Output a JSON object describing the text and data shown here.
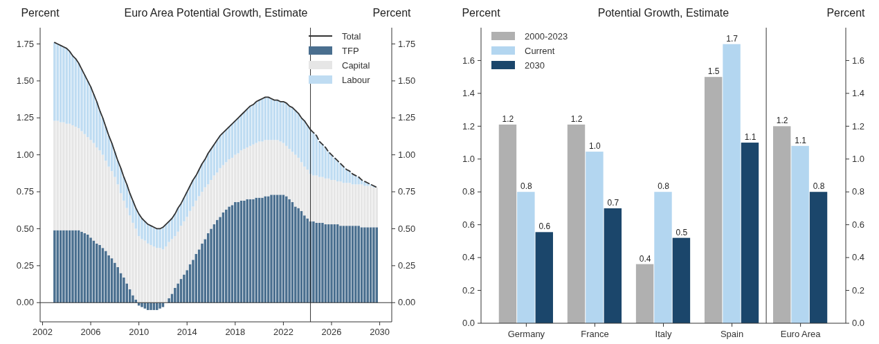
{
  "chart_data": [
    {
      "type": "bar",
      "title": "Euro Area Potential Growth, Estimate",
      "ylabel": "Percent",
      "y2label": "Percent",
      "stacked": true,
      "legend": "top right",
      "x": [
        2003,
        2003.25,
        2003.5,
        2003.75,
        2004,
        2004.25,
        2004.5,
        2004.75,
        2005,
        2005.25,
        2005.5,
        2005.75,
        2006,
        2006.25,
        2006.5,
        2006.75,
        2007,
        2007.25,
        2007.5,
        2007.75,
        2008,
        2008.25,
        2008.5,
        2008.75,
        2009,
        2009.25,
        2009.5,
        2009.75,
        2010,
        2010.25,
        2010.5,
        2010.75,
        2011,
        2011.25,
        2011.5,
        2011.75,
        2012,
        2012.25,
        2012.5,
        2012.75,
        2013,
        2013.25,
        2013.5,
        2013.75,
        2014,
        2014.25,
        2014.5,
        2014.75,
        2015,
        2015.25,
        2015.5,
        2015.75,
        2016,
        2016.25,
        2016.5,
        2016.75,
        2017,
        2017.25,
        2017.5,
        2017.75,
        2018,
        2018.25,
        2018.5,
        2018.75,
        2019,
        2019.25,
        2019.5,
        2019.75,
        2020,
        2020.25,
        2020.5,
        2020.75,
        2021,
        2021.25,
        2021.5,
        2021.75,
        2022,
        2022.25,
        2022.5,
        2022.75,
        2023,
        2023.25,
        2023.5,
        2023.75,
        2024,
        2024.25,
        2024.5,
        2024.75,
        2025,
        2025.25,
        2025.5,
        2025.75,
        2026,
        2026.25,
        2026.5,
        2026.75,
        2027,
        2027.25,
        2027.5,
        2027.75,
        2028,
        2028.25,
        2028.5,
        2028.75,
        2029,
        2029.25,
        2029.5,
        2029.75
      ],
      "series": [
        {
          "name": "TFP",
          "color": "#4a6f8f",
          "values": [
            0.49,
            0.49,
            0.49,
            0.49,
            0.49,
            0.49,
            0.49,
            0.49,
            0.49,
            0.48,
            0.47,
            0.46,
            0.44,
            0.42,
            0.4,
            0.39,
            0.37,
            0.35,
            0.32,
            0.3,
            0.27,
            0.24,
            0.2,
            0.17,
            0.13,
            0.09,
            0.05,
            0.02,
            -0.02,
            -0.03,
            -0.04,
            -0.05,
            -0.05,
            -0.05,
            -0.05,
            -0.04,
            -0.03,
            0.0,
            0.03,
            0.06,
            0.1,
            0.13,
            0.16,
            0.19,
            0.22,
            0.26,
            0.29,
            0.33,
            0.36,
            0.4,
            0.43,
            0.47,
            0.5,
            0.53,
            0.56,
            0.58,
            0.61,
            0.63,
            0.65,
            0.66,
            0.68,
            0.68,
            0.69,
            0.69,
            0.7,
            0.7,
            0.7,
            0.71,
            0.71,
            0.71,
            0.72,
            0.72,
            0.73,
            0.73,
            0.73,
            0.73,
            0.73,
            0.72,
            0.7,
            0.68,
            0.65,
            0.64,
            0.62,
            0.59,
            0.57,
            0.55,
            0.55,
            0.54,
            0.54,
            0.54,
            0.53,
            0.53,
            0.53,
            0.53,
            0.53,
            0.52,
            0.52,
            0.52,
            0.52,
            0.52,
            0.52,
            0.52,
            0.51,
            0.51,
            0.51,
            0.51,
            0.51,
            0.51
          ]
        },
        {
          "name": "Capital",
          "color": "#e6e6e6",
          "values": [
            0.74,
            0.74,
            0.73,
            0.73,
            0.72,
            0.72,
            0.71,
            0.7,
            0.69,
            0.68,
            0.67,
            0.66,
            0.66,
            0.66,
            0.65,
            0.64,
            0.63,
            0.61,
            0.6,
            0.59,
            0.58,
            0.56,
            0.54,
            0.52,
            0.51,
            0.5,
            0.49,
            0.48,
            0.45,
            0.43,
            0.42,
            0.4,
            0.39,
            0.38,
            0.37,
            0.37,
            0.36,
            0.38,
            0.38,
            0.37,
            0.35,
            0.35,
            0.36,
            0.36,
            0.36,
            0.36,
            0.36,
            0.36,
            0.36,
            0.35,
            0.35,
            0.33,
            0.33,
            0.33,
            0.32,
            0.33,
            0.32,
            0.32,
            0.32,
            0.32,
            0.32,
            0.33,
            0.34,
            0.35,
            0.35,
            0.36,
            0.37,
            0.37,
            0.38,
            0.38,
            0.38,
            0.38,
            0.37,
            0.37,
            0.37,
            0.36,
            0.35,
            0.34,
            0.34,
            0.34,
            0.35,
            0.34,
            0.33,
            0.33,
            0.33,
            0.32,
            0.31,
            0.32,
            0.31,
            0.31,
            0.31,
            0.31,
            0.3,
            0.3,
            0.29,
            0.3,
            0.29,
            0.29,
            0.29,
            0.28,
            0.28,
            0.28,
            0.29,
            0.28,
            0.28,
            0.28,
            0.27,
            0.27
          ]
        },
        {
          "name": "Labour",
          "color": "#bfdcf2",
          "values": [
            0.53,
            0.52,
            0.52,
            0.51,
            0.51,
            0.49,
            0.47,
            0.46,
            0.44,
            0.42,
            0.4,
            0.38,
            0.36,
            0.33,
            0.31,
            0.27,
            0.25,
            0.23,
            0.21,
            0.19,
            0.17,
            0.16,
            0.17,
            0.16,
            0.16,
            0.15,
            0.15,
            0.14,
            0.15,
            0.14,
            0.13,
            0.13,
            0.13,
            0.13,
            0.13,
            0.13,
            0.15,
            0.15,
            0.14,
            0.14,
            0.15,
            0.16,
            0.15,
            0.16,
            0.17,
            0.17,
            0.18,
            0.17,
            0.18,
            0.19,
            0.19,
            0.21,
            0.21,
            0.21,
            0.22,
            0.22,
            0.22,
            0.22,
            0.22,
            0.23,
            0.23,
            0.24,
            0.24,
            0.25,
            0.26,
            0.27,
            0.27,
            0.28,
            0.28,
            0.29,
            0.29,
            0.29,
            0.28,
            0.27,
            0.27,
            0.27,
            0.28,
            0.29,
            0.29,
            0.3,
            0.3,
            0.3,
            0.3,
            0.31,
            0.3,
            0.3,
            0.29,
            0.27,
            0.24,
            0.22,
            0.21,
            0.18,
            0.17,
            0.15,
            0.14,
            0.12,
            0.11,
            0.09,
            0.08,
            0.07,
            0.06,
            0.05,
            0.03,
            0.03,
            0.02,
            0.01,
            0.01,
            0.0
          ]
        },
        {
          "name": "Total",
          "type": "line",
          "color": "#333333",
          "line_style": "solid",
          "x": [
            2003,
            2003.25,
            2003.5,
            2003.75,
            2004,
            2004.25,
            2004.5,
            2004.75,
            2005,
            2005.25,
            2005.5,
            2005.75,
            2006,
            2006.25,
            2006.5,
            2006.75,
            2007,
            2007.25,
            2007.5,
            2007.75,
            2008,
            2008.25,
            2008.5,
            2008.75,
            2009,
            2009.25,
            2009.5,
            2009.75,
            2010,
            2010.25,
            2010.5,
            2010.75,
            2011,
            2011.25,
            2011.5,
            2011.75,
            2012,
            2012.25,
            2012.5,
            2012.75,
            2013,
            2013.25,
            2013.5,
            2013.75,
            2014,
            2014.25,
            2014.5,
            2014.75,
            2015,
            2015.25,
            2015.5,
            2015.75,
            2016,
            2016.25,
            2016.5,
            2016.75,
            2017,
            2017.25,
            2017.5,
            2017.75,
            2018,
            2018.25,
            2018.5,
            2018.75,
            2019,
            2019.25,
            2019.5,
            2019.75,
            2020,
            2020.25,
            2020.5,
            2020.75,
            2021,
            2021.25,
            2021.5,
            2021.75,
            2022,
            2022.25,
            2022.5,
            2022.75,
            2023,
            2023.25,
            2023.5,
            2023.75,
            2024,
            2024.25
          ],
          "values": [
            1.76,
            1.75,
            1.74,
            1.73,
            1.72,
            1.7,
            1.67,
            1.65,
            1.62,
            1.58,
            1.54,
            1.5,
            1.46,
            1.41,
            1.36,
            1.3,
            1.25,
            1.19,
            1.13,
            1.08,
            1.02,
            0.96,
            0.91,
            0.85,
            0.8,
            0.74,
            0.69,
            0.64,
            0.6,
            0.57,
            0.55,
            0.53,
            0.52,
            0.51,
            0.5,
            0.5,
            0.51,
            0.53,
            0.55,
            0.57,
            0.6,
            0.64,
            0.67,
            0.71,
            0.75,
            0.79,
            0.83,
            0.86,
            0.9,
            0.94,
            0.97,
            1.01,
            1.04,
            1.07,
            1.1,
            1.13,
            1.15,
            1.17,
            1.19,
            1.21,
            1.23,
            1.25,
            1.27,
            1.29,
            1.31,
            1.33,
            1.34,
            1.36,
            1.37,
            1.38,
            1.39,
            1.39,
            1.38,
            1.37,
            1.37,
            1.36,
            1.36,
            1.35,
            1.33,
            1.32,
            1.3,
            1.28,
            1.25,
            1.23,
            1.2,
            1.17
          ]
        },
        {
          "type": "line",
          "color": "#333333",
          "line_style": "dashed",
          "x": [
            2024.25,
            2024.5,
            2024.75,
            2025,
            2025.25,
            2025.5,
            2025.75,
            2026,
            2026.25,
            2026.5,
            2026.75,
            2027,
            2027.25,
            2027.5,
            2027.75,
            2028,
            2028.25,
            2028.5,
            2028.75,
            2029,
            2029.25,
            2029.5,
            2029.75
          ],
          "values": [
            1.17,
            1.15,
            1.13,
            1.09,
            1.07,
            1.05,
            1.02,
            1.0,
            0.98,
            0.96,
            0.94,
            0.92,
            0.9,
            0.89,
            0.87,
            0.86,
            0.85,
            0.83,
            0.82,
            0.81,
            0.8,
            0.79,
            0.78
          ]
        }
      ],
      "xlim": [
        2001.8,
        2031
      ],
      "xticks": [
        2002,
        2006,
        2010,
        2014,
        2018,
        2022,
        2026,
        2030
      ],
      "ylim": [
        -0.13,
        1.86
      ],
      "yticks": [
        {
          "value": 0,
          "label": "0.00"
        },
        0.25,
        {
          "value": 0.5,
          "label": "0.50"
        },
        0.75,
        {
          "value": 1,
          "label": "1.00"
        },
        1.25,
        {
          "value": 1.5,
          "label": "1.50"
        },
        1.75
      ],
      "y2lim": [
        -0.13,
        1.86
      ],
      "y2ticks": [
        {
          "value": 0,
          "label": "0.00"
        },
        0.25,
        {
          "value": 0.5,
          "label": "0.50"
        },
        0.75,
        {
          "value": 1,
          "label": "1.00"
        },
        1.25,
        {
          "value": 1.5,
          "label": "1.50"
        },
        1.75
      ],
      "ref_lines": [
        {
          "axis": "x",
          "value": 2024.25,
          "color": "#333333"
        },
        {
          "axis": "y",
          "value": 0,
          "color": "#333333"
        }
      ]
    },
    {
      "type": "bar",
      "title": "Potential Growth, Estimate",
      "ylabel": "Percent",
      "y2label": "Percent",
      "legend": "top left",
      "categories": [
        "Germany",
        "France",
        "Italy",
        "Spain",
        "Euro Area"
      ],
      "series": [
        {
          "name": "2000-2023",
          "color": "#b0b0b0",
          "values": [
            1.21,
            1.21,
            0.36,
            1.5,
            1.2
          ],
          "value_labels": [
            "1.2",
            "1.2",
            "0.4",
            "1.5",
            "1.2"
          ]
        },
        {
          "name": "Current",
          "color": "#b3d6f0",
          "values": [
            0.8,
            1.045,
            0.8,
            1.7,
            1.08
          ],
          "value_labels": [
            "0.8",
            "1.0",
            "0.8",
            "1.7",
            "1.1"
          ]
        },
        {
          "name": "2030",
          "color": "#1b466b",
          "values": [
            0.555,
            0.7,
            0.52,
            1.1,
            0.8
          ],
          "value_labels": [
            "0.6",
            "0.7",
            "0.5",
            "1.1",
            "0.8"
          ]
        }
      ],
      "ylim": [
        0,
        1.8
      ],
      "yticks": [
        {
          "value": 0,
          "label": "0.0"
        },
        0.2,
        0.4,
        0.6,
        0.8,
        {
          "value": 1,
          "label": "1.0"
        },
        1.2,
        1.4,
        1.6
      ],
      "y2lim": [
        0,
        1.8
      ],
      "y2ticks": [
        {
          "value": 0,
          "label": "0.0"
        },
        0.2,
        0.4,
        0.6,
        0.8,
        {
          "value": 1,
          "label": "1.0"
        },
        1.2,
        1.4,
        1.6
      ]
    }
  ]
}
